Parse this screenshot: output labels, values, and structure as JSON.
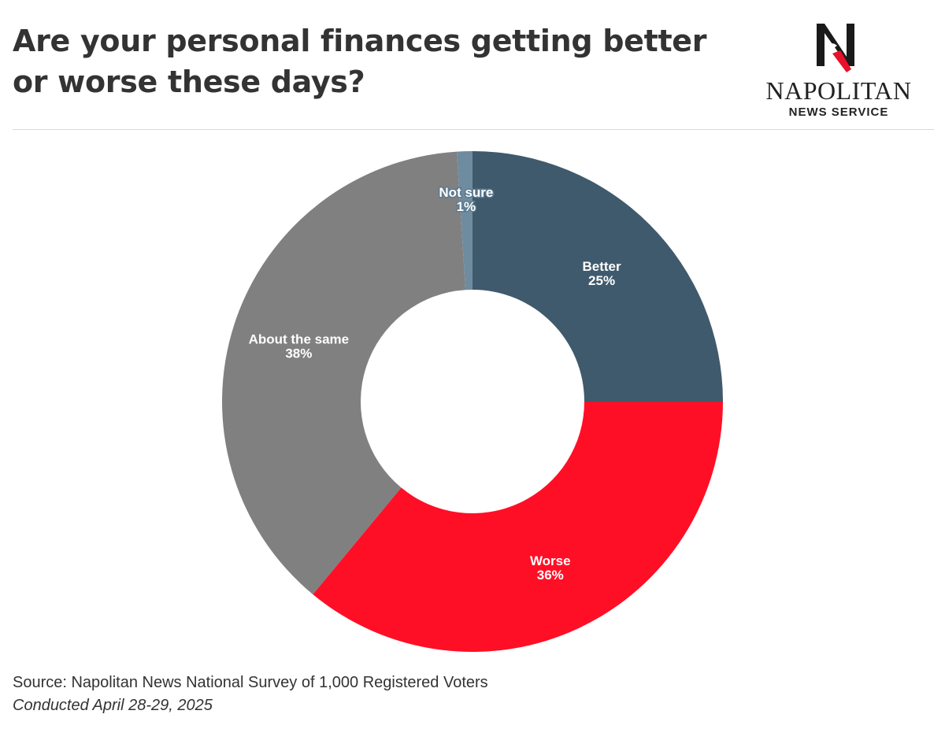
{
  "header": {
    "title": "Are your personal finances getting better or worse these days?"
  },
  "logo": {
    "icon": "napolitan-n-eagle-logo",
    "word": "NAPOLITAN",
    "sub": "NEWS SERVICE"
  },
  "footer": {
    "source": "Source: Napolitan News National Survey of 1,000 Registered Voters",
    "conducted": "Conducted April 28-29, 2025"
  },
  "chart_data": {
    "type": "pie",
    "variant": "donut",
    "slices": [
      {
        "label": "Better",
        "value": 25,
        "value_label": "25%",
        "color": "#3F5A6C"
      },
      {
        "label": "Worse",
        "value": 36,
        "value_label": "36%",
        "color": "#FF0F26"
      },
      {
        "label": "About the same",
        "value": 38,
        "value_label": "38%",
        "color": "#808080"
      },
      {
        "label": "Not sure",
        "value": 1,
        "value_label": "1%",
        "color": "#6F8BA0"
      }
    ]
  }
}
